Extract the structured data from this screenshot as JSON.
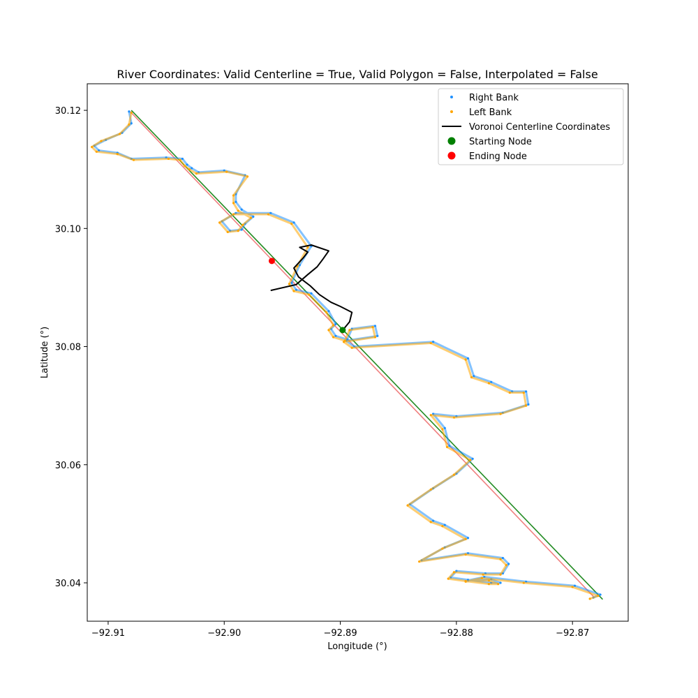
{
  "chart_data": {
    "type": "scatter",
    "title": "River Coordinates: Valid Centerline = True, Valid Polygon = False, Interpolated = False",
    "xlabel": "Longitude (°)",
    "ylabel": "Latitude (°)",
    "xlim": [
      -92.9118,
      -92.8652
    ],
    "ylim": [
      30.0335,
      30.1245
    ],
    "xticks": [
      -92.91,
      -92.9,
      -92.89,
      -92.88,
      -92.87
    ],
    "xtick_labels": [
      "−92.91",
      "−92.90",
      "−92.89",
      "−92.88",
      "−92.87"
    ],
    "yticks": [
      30.04,
      30.06,
      30.08,
      30.1,
      30.12
    ],
    "ytick_labels": [
      "30.04",
      "30.06",
      "30.08",
      "30.10",
      "30.12"
    ],
    "grid": false,
    "legend_position": "top-right",
    "series": [
      {
        "name": "Right Bank",
        "kind": "scatter",
        "color": "#1E90FF",
        "x": [
          -92.9082,
          -92.908,
          -92.9088,
          -92.9102,
          -92.9112,
          -92.9108,
          -92.9092,
          -92.908,
          -92.905,
          -92.9036,
          -92.9032,
          -92.9028,
          -92.9022,
          -92.9,
          -92.8982,
          -92.899,
          -92.899,
          -92.8985,
          -92.8975,
          -92.8982,
          -92.8985,
          -92.8995,
          -92.9002,
          -92.899,
          -92.896,
          -92.894,
          -92.8925,
          -92.8935,
          -92.8942,
          -92.8938,
          -92.8925,
          -92.891,
          -92.8904,
          -92.8908,
          -92.8904,
          -92.8894,
          -92.889,
          -92.887,
          -92.8868,
          -92.8895,
          -92.8888,
          -92.882,
          -92.879,
          -92.8785,
          -92.877,
          -92.8752,
          -92.874,
          -92.8738,
          -92.876,
          -92.88,
          -92.882,
          -92.881,
          -92.8806,
          -92.8786,
          -92.88,
          -92.882,
          -92.884,
          -92.882,
          -92.881,
          -92.879,
          -92.881,
          -92.883,
          -92.879,
          -92.876,
          -92.8755,
          -92.876,
          -92.8775,
          -92.88,
          -92.8805,
          -92.879,
          -92.877,
          -92.8762,
          -92.877,
          -92.879,
          -92.8776,
          -92.874,
          -92.8698,
          -92.8676,
          -92.8682
        ],
        "y": [
          30.1198,
          30.1178,
          30.1162,
          30.115,
          30.114,
          30.1132,
          30.1128,
          30.1118,
          30.112,
          30.1118,
          30.1108,
          30.1102,
          30.1095,
          30.1098,
          30.109,
          30.1058,
          30.1045,
          30.1032,
          30.102,
          30.1008,
          30.0998,
          30.0996,
          30.1012,
          30.1026,
          30.1026,
          30.101,
          30.097,
          30.0938,
          30.0908,
          30.0896,
          30.089,
          30.086,
          30.0838,
          30.083,
          30.0818,
          30.0812,
          30.083,
          30.0835,
          30.0818,
          30.081,
          30.08,
          30.0808,
          30.078,
          30.075,
          30.074,
          30.0724,
          30.0724,
          30.0702,
          30.0688,
          30.0682,
          30.0686,
          30.0662,
          30.0632,
          30.061,
          30.0585,
          30.056,
          30.0533,
          30.0505,
          30.0498,
          30.0476,
          30.046,
          30.0438,
          30.045,
          30.0442,
          30.0432,
          30.0416,
          30.0416,
          30.042,
          30.0409,
          30.0405,
          30.04,
          30.04,
          30.0406,
          30.0404,
          30.041,
          30.0402,
          30.0395,
          30.038,
          30.0375
        ]
      },
      {
        "name": "Left Bank",
        "kind": "scatter",
        "color": "#FFA500",
        "x": [
          -92.908,
          -92.9082,
          -92.909,
          -92.9106,
          -92.9114,
          -92.911,
          -92.9092,
          -92.9078,
          -92.9048,
          -92.9038,
          -92.9034,
          -92.903,
          -92.9024,
          -92.8998,
          -92.898,
          -92.8992,
          -92.8992,
          -92.8988,
          -92.8977,
          -92.8984,
          -92.8988,
          -92.8997,
          -92.9004,
          -92.8992,
          -92.8962,
          -92.8942,
          -92.8928,
          -92.8937,
          -92.8944,
          -92.894,
          -92.8927,
          -92.8912,
          -92.8906,
          -92.891,
          -92.8906,
          -92.8896,
          -92.8892,
          -92.8872,
          -92.887,
          -92.8897,
          -92.889,
          -92.8822,
          -92.8792,
          -92.8787,
          -92.8772,
          -92.8754,
          -92.8742,
          -92.874,
          -92.8762,
          -92.8802,
          -92.8822,
          -92.8812,
          -92.8808,
          -92.8788,
          -92.8802,
          -92.8822,
          -92.8842,
          -92.8822,
          -92.8812,
          -92.8792,
          -92.8812,
          -92.8832,
          -92.8792,
          -92.8762,
          -92.8757,
          -92.8762,
          -92.8777,
          -92.8802,
          -92.8807,
          -92.8792,
          -92.8772,
          -92.8764,
          -92.8772,
          -92.8792,
          -92.8778,
          -92.8742,
          -92.87,
          -92.8678,
          -92.8685
        ],
        "y": [
          30.1196,
          30.1176,
          30.116,
          30.1148,
          30.1138,
          30.113,
          30.1126,
          30.1116,
          30.1118,
          30.1116,
          30.1106,
          30.11,
          30.1093,
          30.1096,
          30.1088,
          30.1056,
          30.1043,
          30.103,
          30.1018,
          30.1006,
          30.0996,
          30.0994,
          30.101,
          30.1024,
          30.1024,
          30.1008,
          30.0968,
          30.0936,
          30.0906,
          30.0894,
          30.0888,
          30.0858,
          30.0836,
          30.0828,
          30.0816,
          30.081,
          30.0828,
          30.0833,
          30.0816,
          30.0808,
          30.0798,
          30.0806,
          30.0778,
          30.0748,
          30.0738,
          30.0722,
          30.0722,
          30.07,
          30.0686,
          30.068,
          30.0684,
          30.066,
          30.063,
          30.0608,
          30.0583,
          30.0558,
          30.0531,
          30.0503,
          30.0496,
          30.0474,
          30.0458,
          30.0436,
          30.0448,
          30.044,
          30.043,
          30.0414,
          30.0414,
          30.0418,
          30.0407,
          30.0403,
          30.0398,
          30.0398,
          30.0404,
          30.0402,
          30.0408,
          30.04,
          30.0393,
          30.0378,
          30.0373
        ]
      },
      {
        "name": "Voronoi Centerline Coordinates",
        "kind": "line",
        "color": "#000000",
        "x": [
          -92.8897,
          -92.8892,
          -92.889,
          -92.89,
          -92.8908,
          -92.8918,
          -92.8926,
          -92.8936,
          -92.894,
          -92.8932,
          -92.8928,
          -92.8935,
          -92.8925,
          -92.891,
          -92.8915,
          -92.892,
          -92.8928,
          -92.8938,
          -92.896
        ],
        "y": [
          30.083,
          30.0842,
          30.0858,
          30.0868,
          30.0875,
          30.0888,
          30.0903,
          30.0918,
          30.0933,
          30.095,
          30.096,
          30.0968,
          30.0972,
          30.0962,
          30.0948,
          30.0935,
          30.0922,
          30.0905,
          30.0895
        ]
      },
      {
        "name": "Starting Node",
        "kind": "point",
        "color": "#008000",
        "x": [
          -92.8898
        ],
        "y": [
          30.0828
        ]
      },
      {
        "name": "Ending Node",
        "kind": "point",
        "color": "#FF0000",
        "x": [
          -92.8959
        ],
        "y": [
          30.0945
        ]
      }
    ],
    "reference_lines": [
      {
        "color": "#F08080",
        "x": [
          -92.9081,
          -92.8682
        ],
        "y": [
          30.1198,
          30.0377
        ]
      },
      {
        "color": "#228B22",
        "x": [
          -92.908,
          -92.8674
        ],
        "y": [
          30.12,
          30.0372
        ]
      }
    ]
  }
}
